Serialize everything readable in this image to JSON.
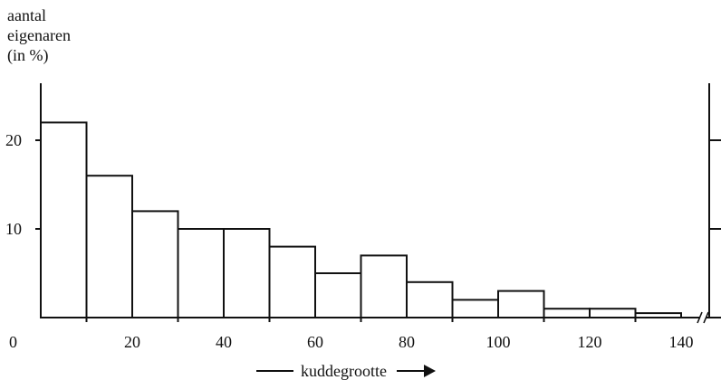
{
  "chart_data": {
    "type": "bar",
    "title": "",
    "ylabel_lines": [
      "aantal",
      "eigenaren",
      "(in %)"
    ],
    "xlabel": "kuddegrootte",
    "x_unit_bins": [
      [
        0,
        10
      ],
      [
        10,
        20
      ],
      [
        20,
        30
      ],
      [
        30,
        40
      ],
      [
        40,
        50
      ],
      [
        50,
        60
      ],
      [
        60,
        70
      ],
      [
        70,
        80
      ],
      [
        80,
        90
      ],
      [
        90,
        100
      ],
      [
        100,
        110
      ],
      [
        110,
        120
      ],
      [
        120,
        130
      ],
      [
        130,
        140
      ]
    ],
    "values": [
      22,
      16,
      12,
      10,
      10,
      8,
      5,
      7,
      4,
      2,
      3,
      1,
      1,
      0.5
    ],
    "xlim": [
      0,
      145
    ],
    "ylim": [
      0,
      26
    ],
    "x_ticks": [
      0,
      20,
      40,
      60,
      80,
      100,
      120,
      140
    ],
    "y_ticks": [
      10,
      20
    ],
    "grid": false,
    "legend": "none"
  }
}
